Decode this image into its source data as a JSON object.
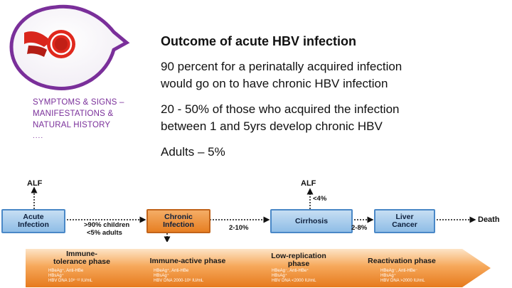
{
  "section": {
    "lines": [
      "SYMPTOMS & SIGNS –",
      "MANIFESTATIONS &",
      "NATURAL HISTORY"
    ],
    "dots": "....",
    "accent_color": "#7a2f9a",
    "logo_icon": "red-rosette-ribbon-icon"
  },
  "content": {
    "title": "Outcome of acute HBV infection",
    "bullets": [
      "90 percent for a perinatally acquired infection",
      "would go on to have chronic HBV infection",
      "20 - 50% of those who acquired the infection",
      "between 1 and 5yrs develop chronic HBV",
      "Adults – 5%"
    ]
  },
  "flow": {
    "nodes": {
      "acute": [
        "Acute",
        "Infection"
      ],
      "chronic": [
        "Chronic",
        "Infection"
      ],
      "cirrhosis": "Cirrhosis",
      "cancer": [
        "Liver",
        "Cancer"
      ],
      "death": "Death",
      "alf_left": "ALF",
      "alf_right": "ALF"
    },
    "labels": {
      "acute_to_chronic": [
        ">90% children",
        "<5% adults"
      ],
      "chronic_to_cirrhosis": "2-10%",
      "cirrhosis_to_alf": "<4%",
      "cirrhosis_to_cancer": "2-8%"
    }
  },
  "phases": [
    {
      "name": [
        "Immune-",
        "tolerance phase"
      ],
      "details": [
        "HBeAg⁺, Anti-HBe",
        "HBsAg⁺",
        "HBV DNA 10⁸⁻¹² IU/mL"
      ]
    },
    {
      "name": [
        "Immune-active phase"
      ],
      "details": [
        "HBeAg⁺, Anti-HBe",
        "HBsAg⁺",
        "HBV DNA 2000-10⁸ IU/mL"
      ]
    },
    {
      "name": [
        "Low-replication",
        "phase"
      ],
      "details": [
        "HBeAg⁻, Anti-HBe⁺",
        "HBsAg⁺",
        "HBV DNA <2000 IU/mL"
      ]
    },
    {
      "name": [
        "Reactivation phase"
      ],
      "details": [
        "HBeAg⁻, Anti-HBe⁻",
        "HBsAg⁺",
        "HBV DNA >2000 IU/mL"
      ]
    }
  ]
}
